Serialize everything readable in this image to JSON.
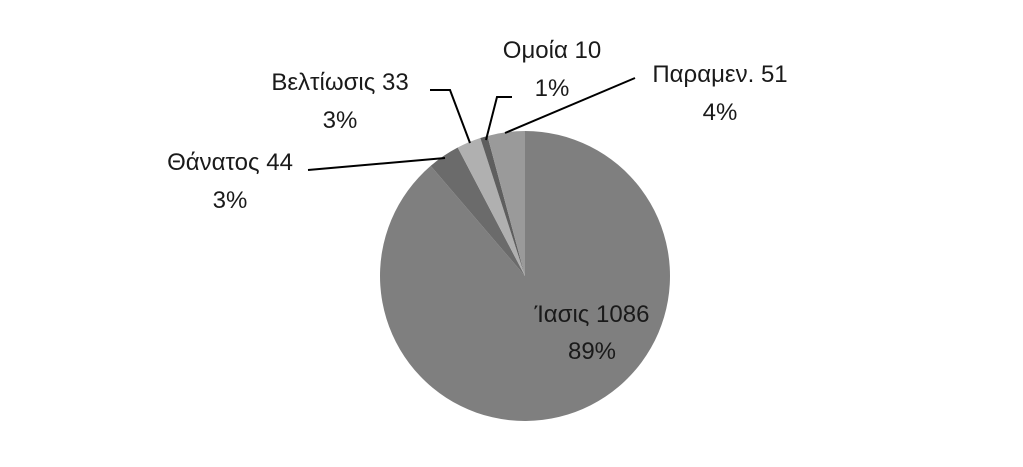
{
  "chart_data": {
    "type": "pie",
    "title": "",
    "slices": [
      {
        "name": "Ίασις",
        "value": 1086,
        "percent_label": "89%",
        "value_label": "Ίασις 1086",
        "color": "#7f7f7f"
      },
      {
        "name": "Θάνατος",
        "value": 44,
        "percent_label": "3%",
        "value_label": "Θάνατος 44",
        "color": "#6b6b6b"
      },
      {
        "name": "Βελτίωσις",
        "value": 33,
        "percent_label": "3%",
        "value_label": "Βελτίωσις 33",
        "color": "#b0b0b0"
      },
      {
        "name": "Ομοία",
        "value": 10,
        "percent_label": "1%",
        "value_label": "Ομοία 10",
        "color": "#5e5e5e"
      },
      {
        "name": "Παραμεν.",
        "value": 51,
        "percent_label": "4%",
        "value_label": "Παραμεν. 51",
        "color": "#9a9a9a"
      }
    ],
    "start_angle": "12 o'clock",
    "direction": "clockwise",
    "legend": "none"
  }
}
